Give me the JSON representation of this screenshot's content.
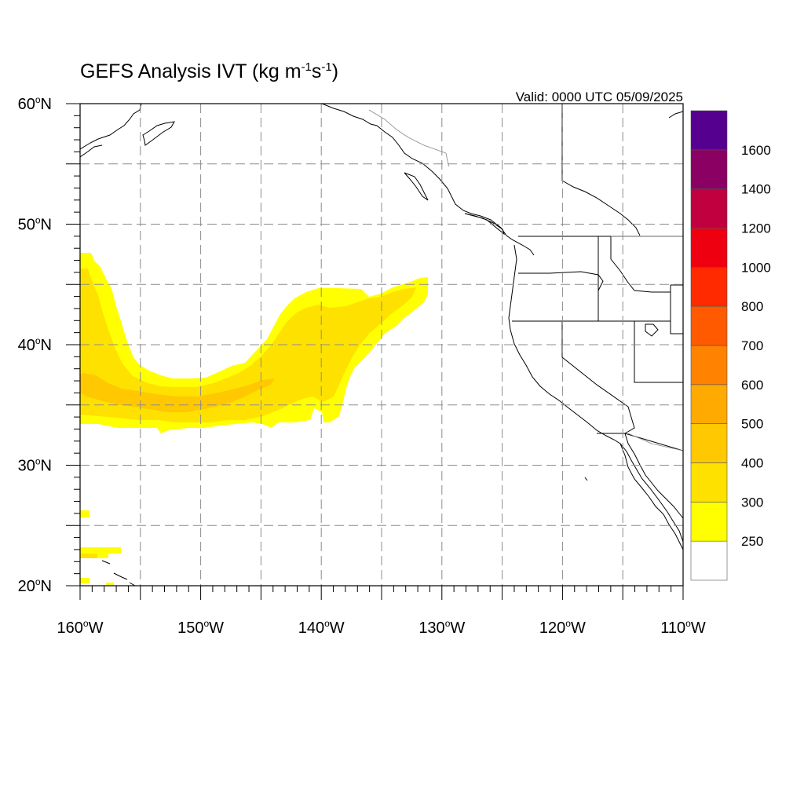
{
  "title": {
    "main": "GEFS Analysis IVT (kg m",
    "sup1": "-1",
    "mid": "s",
    "sup2": "-1",
    "close": ")"
  },
  "valid_label": "Valid: 0000 UTC 05/09/2025",
  "map": {
    "projection": "cylindrical-equidistant",
    "lon_range": [
      -160,
      -110
    ],
    "lat_range": [
      20,
      60
    ],
    "grid": "dashed gray every 5 degrees",
    "lat_ticks": [
      {
        "value": 60,
        "deg": "60",
        "hemi": "N"
      },
      {
        "value": 50,
        "deg": "50",
        "hemi": "N"
      },
      {
        "value": 40,
        "deg": "40",
        "hemi": "N"
      },
      {
        "value": 30,
        "deg": "30",
        "hemi": "N"
      },
      {
        "value": 20,
        "deg": "20",
        "hemi": "N"
      }
    ],
    "lon_ticks": [
      {
        "value": -160,
        "deg": "160",
        "hemi": "W"
      },
      {
        "value": -150,
        "deg": "150",
        "hemi": "W"
      },
      {
        "value": -140,
        "deg": "140",
        "hemi": "W"
      },
      {
        "value": -130,
        "deg": "130",
        "hemi": "W"
      },
      {
        "value": -120,
        "deg": "120",
        "hemi": "W"
      },
      {
        "value": -110,
        "deg": "110",
        "hemi": "W"
      }
    ]
  },
  "colorbar": {
    "levels": [
      "250",
      "300",
      "400",
      "500",
      "600",
      "700",
      "800",
      "1000",
      "1200",
      "1400",
      "1600"
    ],
    "colors": [
      "#ffffff",
      "#ffff00",
      "#ffe100",
      "#ffc800",
      "#ffaa00",
      "#ff8200",
      "#ff5a00",
      "#ff2a00",
      "#ee0010",
      "#c0003f",
      "#8a0063",
      "#55008f"
    ]
  },
  "ivt_regions": [
    {
      "band": "250-300",
      "color": "#ffff00",
      "description_level": 1
    },
    {
      "band": "300-400",
      "color": "#ffe100",
      "description_level": 2
    },
    {
      "band": "400-500",
      "color": "#ffc800",
      "description_level": 3
    }
  ]
}
